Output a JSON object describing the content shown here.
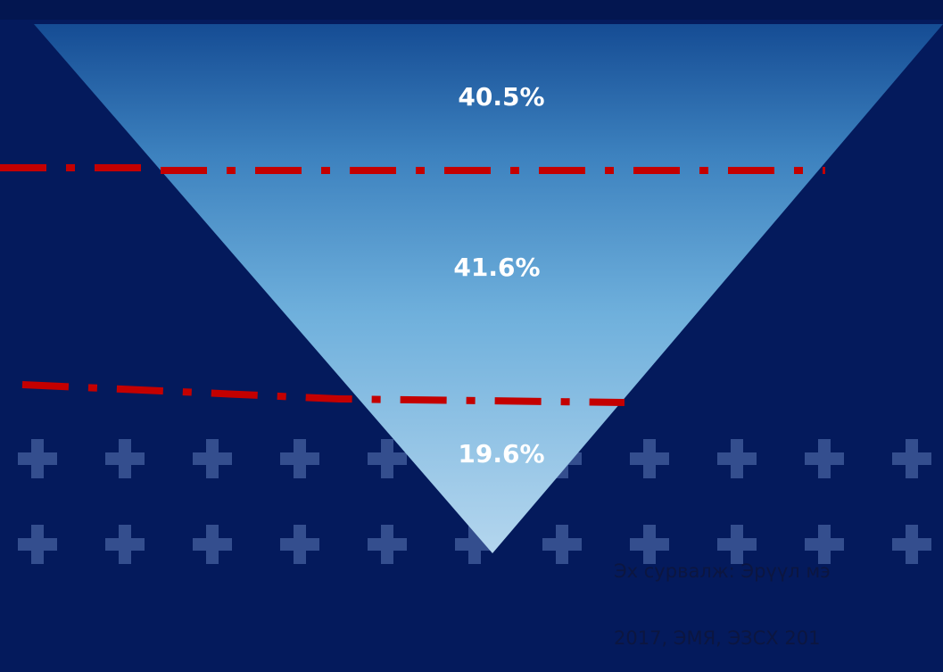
{
  "levels": [
    {
      "label": "40.5%"
    },
    {
      "label": "41.6%"
    },
    {
      "label": "19.6%"
    }
  ],
  "source": {
    "line1": "Эх сурвалж: Эрүүл мэ",
    "line2": "2017, ЭМЯ, ЭЗСХ 201"
  },
  "colors": {
    "background": "#041a5c",
    "funnel_top": "#1c5da3",
    "funnel_bottom": "#b4d6ee",
    "divider": "#c40000",
    "pattern": "#2e4a8a"
  }
}
